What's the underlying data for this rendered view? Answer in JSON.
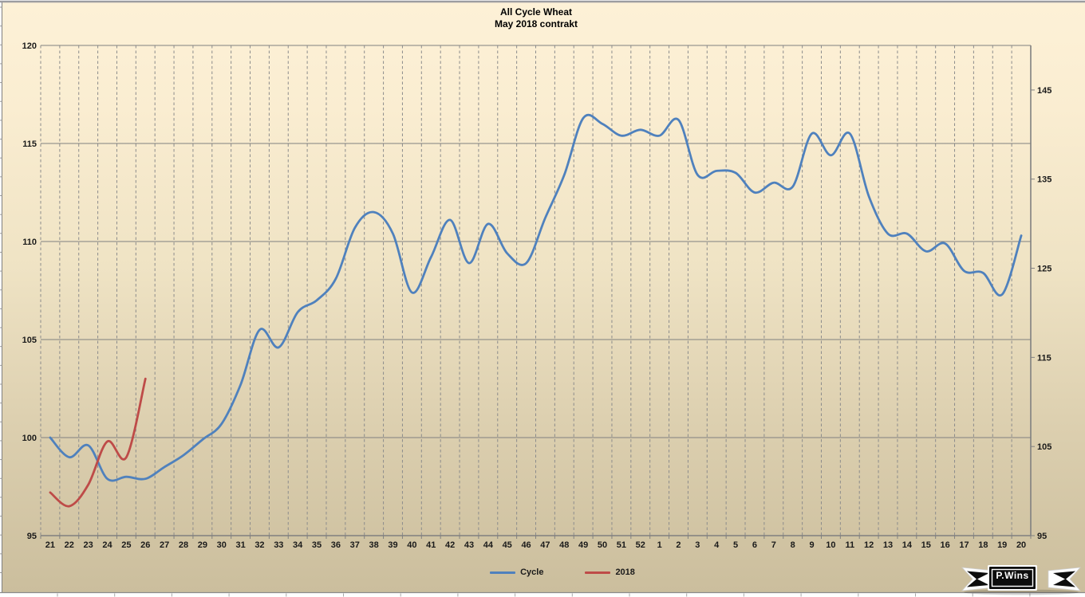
{
  "title": {
    "line1": "All Cycle Wheat",
    "line2": "May 2018 contrakt"
  },
  "watermark": {
    "text": "P.Wins"
  },
  "legend": {
    "items": [
      {
        "label": "Cycle",
        "color": "#4F81BD"
      },
      {
        "label": "2018",
        "color": "#BE4B48"
      }
    ]
  },
  "colors": {
    "background_top": "#FDF1D7",
    "background_bottom": "#CBBE9D",
    "grid": "#8C8C8C",
    "axis": "#808080",
    "text": "#1A1A1A",
    "series_cycle": "#4F81BD",
    "series_2018": "#BE4B48"
  },
  "chart_data": {
    "type": "line",
    "title": "All Cycle Wheat",
    "subtitle": "May 2018 contrakt",
    "smooth_lines": true,
    "legend_position": "bottom-center",
    "grid": {
      "horizontal": "solid",
      "vertical": "dashed-per-category"
    },
    "categories": [
      "21",
      "22",
      "23",
      "24",
      "25",
      "26",
      "27",
      "28",
      "29",
      "30",
      "31",
      "32",
      "33",
      "34",
      "35",
      "36",
      "37",
      "38",
      "39",
      "40",
      "41",
      "42",
      "43",
      "44",
      "45",
      "46",
      "47",
      "48",
      "49",
      "50",
      "51",
      "52",
      "1",
      "2",
      "3",
      "4",
      "5",
      "6",
      "7",
      "8",
      "9",
      "10",
      "11",
      "12",
      "13",
      "14",
      "15",
      "16",
      "17",
      "18",
      "19",
      "20"
    ],
    "left_axis": {
      "min": 95,
      "max": 120,
      "step": 5,
      "ticks": [
        120,
        115,
        110,
        105,
        100,
        95
      ]
    },
    "right_axis": {
      "min": 95,
      "max": 150,
      "step": 10,
      "ticks": [
        145,
        135,
        125,
        115,
        105,
        95
      ]
    },
    "series": [
      {
        "name": "Cycle",
        "color": "#4F81BD",
        "axis": "left",
        "values": [
          100.0,
          99.0,
          99.6,
          97.9,
          98.0,
          97.9,
          98.5,
          99.1,
          99.9,
          100.7,
          102.7,
          105.5,
          104.6,
          106.4,
          107.0,
          108.1,
          110.7,
          111.5,
          110.4,
          107.4,
          109.2,
          111.1,
          108.9,
          110.9,
          109.4,
          108.9,
          111.2,
          113.4,
          116.3,
          116.0,
          115.4,
          115.7,
          115.4,
          116.2,
          113.4,
          113.6,
          113.5,
          112.5,
          113.0,
          112.8,
          115.5,
          114.4,
          115.5,
          112.3,
          110.4,
          110.4,
          109.5,
          109.9,
          108.5,
          108.4,
          107.3,
          110.3
        ]
      },
      {
        "name": "2018",
        "color": "#BE4B48",
        "axis": "left",
        "values": [
          97.2,
          96.5,
          97.6,
          99.8,
          99.0,
          103.0
        ]
      }
    ]
  }
}
